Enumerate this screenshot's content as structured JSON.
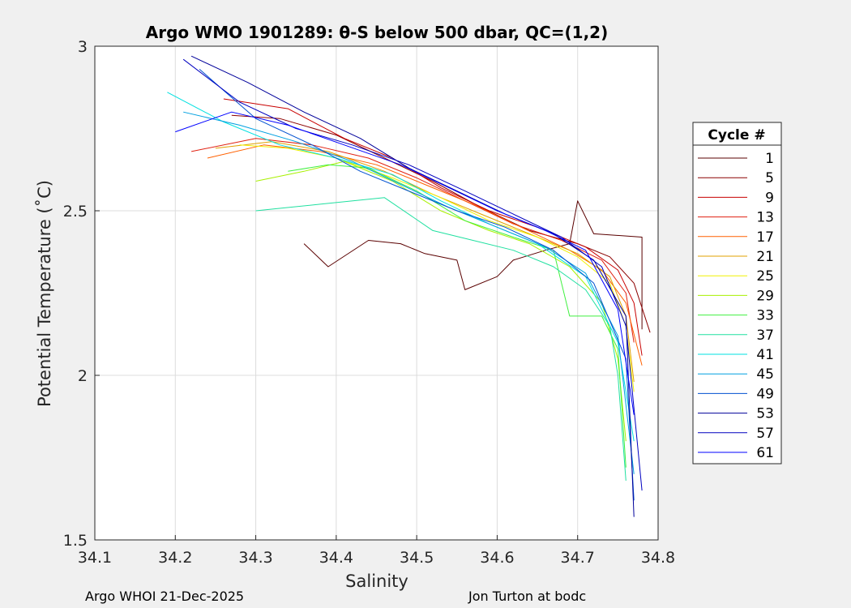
{
  "chart_data": {
    "type": "line",
    "title": "Argo WMO 1901289: θ-S below 500 dbar,  QC=(1,2)",
    "xlabel": "Salinity",
    "ylabel": "Potential Temperature (˚C)",
    "xlim": [
      34.1,
      34.8
    ],
    "ylim": [
      1.5,
      3.0
    ],
    "xticks": [
      "34.1",
      "34.2",
      "34.3",
      "34.4",
      "34.5",
      "34.6",
      "34.7",
      "34.8"
    ],
    "yticks": [
      "1.5",
      "2",
      "2.5",
      "3"
    ],
    "grid": true,
    "legend": {
      "title": "Cycle #",
      "position": "outside-right",
      "entries": [
        {
          "label": "1",
          "color": "#5a0000"
        },
        {
          "label": "5",
          "color": "#8b0000"
        },
        {
          "label": "9",
          "color": "#c80000"
        },
        {
          "label": "13",
          "color": "#e02010"
        },
        {
          "label": "17",
          "color": "#ff6000"
        },
        {
          "label": "21",
          "color": "#e0a000"
        },
        {
          "label": "25",
          "color": "#f0f000"
        },
        {
          "label": "29",
          "color": "#a8f000"
        },
        {
          "label": "33",
          "color": "#40f040"
        },
        {
          "label": "37",
          "color": "#20e0a0"
        },
        {
          "label": "41",
          "color": "#00e0e0"
        },
        {
          "label": "45",
          "color": "#00a0e0"
        },
        {
          "label": "49",
          "color": "#0050d0"
        },
        {
          "label": "53",
          "color": "#00009a"
        },
        {
          "label": "57",
          "color": "#0000c0"
        },
        {
          "label": "61",
          "color": "#0000ff"
        }
      ]
    },
    "series": [
      {
        "name": "1",
        "color": "#5a0000",
        "x": [
          34.36,
          34.39,
          34.44,
          34.48,
          34.51,
          34.55,
          34.56,
          34.6,
          34.62,
          34.66,
          34.69,
          34.7,
          34.72,
          34.78,
          34.78
        ],
        "y": [
          2.4,
          2.33,
          2.41,
          2.4,
          2.37,
          2.35,
          2.26,
          2.3,
          2.35,
          2.38,
          2.4,
          2.53,
          2.43,
          2.42,
          2.14
        ]
      },
      {
        "name": "5",
        "color": "#8b0000",
        "x": [
          34.27,
          34.33,
          34.4,
          34.46,
          34.52,
          34.58,
          34.64,
          34.7,
          34.74,
          34.77,
          34.79
        ],
        "y": [
          2.79,
          2.78,
          2.73,
          2.66,
          2.59,
          2.51,
          2.44,
          2.4,
          2.36,
          2.28,
          2.13
        ]
      },
      {
        "name": "9",
        "color": "#c80000",
        "x": [
          34.26,
          34.34,
          34.41,
          34.47,
          34.53,
          34.59,
          34.65,
          34.71,
          34.75,
          34.77,
          34.78
        ],
        "y": [
          2.84,
          2.81,
          2.72,
          2.66,
          2.57,
          2.5,
          2.45,
          2.39,
          2.32,
          2.22,
          2.06
        ]
      },
      {
        "name": "13",
        "color": "#e02010",
        "x": [
          34.22,
          34.3,
          34.37,
          34.44,
          34.5,
          34.56,
          34.62,
          34.68,
          34.73,
          34.76,
          34.77
        ],
        "y": [
          2.68,
          2.72,
          2.7,
          2.66,
          2.6,
          2.53,
          2.46,
          2.41,
          2.35,
          2.25,
          2.1
        ]
      },
      {
        "name": "17",
        "color": "#ff6000",
        "x": [
          34.24,
          34.31,
          34.38,
          34.45,
          34.51,
          34.57,
          34.63,
          34.69,
          34.73,
          34.76,
          34.78
        ],
        "y": [
          2.66,
          2.7,
          2.68,
          2.64,
          2.58,
          2.52,
          2.45,
          2.38,
          2.32,
          2.22,
          2.03
        ]
      },
      {
        "name": "21",
        "color": "#e0a000",
        "x": [
          34.25,
          34.32,
          34.39,
          34.46,
          34.52,
          34.58,
          34.64,
          34.7,
          34.74,
          34.76,
          34.77
        ],
        "y": [
          2.69,
          2.71,
          2.68,
          2.62,
          2.55,
          2.49,
          2.43,
          2.37,
          2.3,
          2.18,
          1.98
        ]
      },
      {
        "name": "25",
        "color": "#f0f000",
        "x": [
          34.28,
          34.34,
          34.4,
          34.47,
          34.53,
          34.59,
          34.65,
          34.7,
          34.74,
          34.76,
          34.77
        ],
        "y": [
          2.7,
          2.69,
          2.66,
          2.6,
          2.54,
          2.47,
          2.42,
          2.36,
          2.28,
          2.15,
          1.95
        ]
      },
      {
        "name": "29",
        "color": "#a8f000",
        "x": [
          34.3,
          34.36,
          34.41,
          34.47,
          34.53,
          34.59,
          34.64,
          34.69,
          34.73,
          34.75,
          34.76
        ],
        "y": [
          2.59,
          2.62,
          2.65,
          2.59,
          2.5,
          2.44,
          2.4,
          2.33,
          2.22,
          2.05,
          1.8
        ]
      },
      {
        "name": "33",
        "color": "#40f040",
        "x": [
          34.34,
          34.39,
          34.44,
          34.5,
          34.56,
          34.62,
          34.67,
          34.69,
          34.73,
          34.75,
          34.76
        ],
        "y": [
          2.62,
          2.64,
          2.63,
          2.56,
          2.47,
          2.42,
          2.38,
          2.18,
          2.18,
          2.08,
          1.72
        ]
      },
      {
        "name": "37",
        "color": "#20e0a0",
        "x": [
          34.3,
          34.38,
          34.46,
          34.52,
          34.57,
          34.62,
          34.67,
          34.71,
          34.74,
          34.75,
          34.76
        ],
        "y": [
          2.5,
          2.52,
          2.54,
          2.44,
          2.41,
          2.38,
          2.33,
          2.26,
          2.15,
          2.0,
          1.68
        ]
      },
      {
        "name": "41",
        "color": "#00e0e0",
        "x": [
          34.19,
          34.26,
          34.33,
          34.4,
          34.47,
          34.53,
          34.59,
          34.65,
          34.71,
          34.75,
          34.77
        ],
        "y": [
          2.86,
          2.77,
          2.7,
          2.66,
          2.61,
          2.53,
          2.46,
          2.4,
          2.3,
          2.1,
          1.8
        ]
      },
      {
        "name": "45",
        "color": "#00a0e0",
        "x": [
          34.21,
          34.28,
          34.35,
          34.42,
          34.48,
          34.54,
          34.6,
          34.66,
          34.71,
          34.75,
          34.77
        ],
        "y": [
          2.8,
          2.76,
          2.71,
          2.65,
          2.58,
          2.51,
          2.45,
          2.39,
          2.31,
          2.12,
          1.7
        ]
      },
      {
        "name": "49",
        "color": "#0050d0",
        "x": [
          34.23,
          34.3,
          34.37,
          34.43,
          34.49,
          34.55,
          34.61,
          34.67,
          34.72,
          34.76,
          34.77
        ],
        "y": [
          2.93,
          2.78,
          2.7,
          2.62,
          2.56,
          2.5,
          2.45,
          2.38,
          2.28,
          2.05,
          1.62
        ]
      },
      {
        "name": "53",
        "color": "#00009a",
        "x": [
          34.22,
          34.29,
          34.36,
          34.43,
          34.49,
          34.55,
          34.61,
          34.67,
          34.72,
          34.76,
          34.77
        ],
        "y": [
          2.97,
          2.89,
          2.8,
          2.72,
          2.63,
          2.56,
          2.49,
          2.43,
          2.35,
          2.18,
          1.57
        ]
      },
      {
        "name": "57",
        "color": "#0000c0",
        "x": [
          34.21,
          34.28,
          34.35,
          34.42,
          34.49,
          34.56,
          34.62,
          34.68,
          34.73,
          34.76,
          34.78
        ],
        "y": [
          2.96,
          2.83,
          2.75,
          2.7,
          2.64,
          2.56,
          2.49,
          2.42,
          2.33,
          2.15,
          1.65
        ]
      },
      {
        "name": "61",
        "color": "#0000ff",
        "x": [
          34.2,
          34.27,
          34.34,
          34.41,
          34.48,
          34.54,
          34.6,
          34.66,
          34.71,
          34.75,
          34.77
        ],
        "y": [
          2.74,
          2.8,
          2.76,
          2.7,
          2.64,
          2.57,
          2.5,
          2.44,
          2.38,
          2.2,
          1.88
        ]
      }
    ]
  },
  "footer": {
    "left": "Argo WHOI 21-Dec-2025",
    "right": "Jon Turton at bodc"
  }
}
